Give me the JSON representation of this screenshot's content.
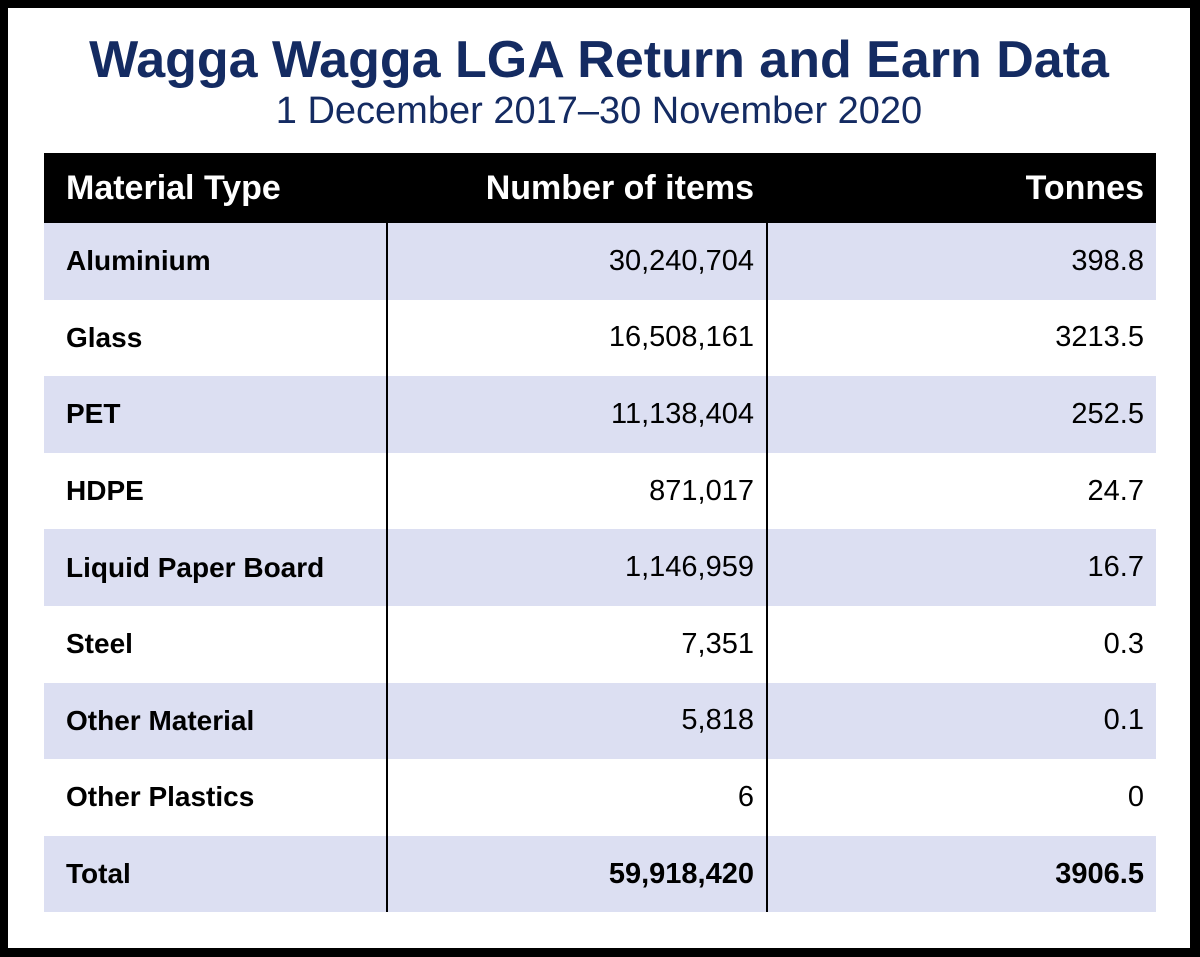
{
  "title": "Wagga Wagga LGA Return and Earn Data",
  "subtitle": "1 December 2017–30 November 2020",
  "colors": {
    "title": "#142b62",
    "header_bg": "#000000",
    "header_text": "#ffffff",
    "shaded_row": "#dcdff2",
    "plain_row": "#ffffff",
    "border": "#000000"
  },
  "table": {
    "headers": [
      "Material Type",
      "Number of items",
      "Tonnes"
    ],
    "rows": [
      {
        "material": "Aluminium",
        "items": "30,240,704",
        "tonnes": "398.8"
      },
      {
        "material": "Glass",
        "items": "16,508,161",
        "tonnes": "3213.5"
      },
      {
        "material": "PET",
        "items": "11,138,404",
        "tonnes": "252.5"
      },
      {
        "material": "HDPE",
        "items": "871,017",
        "tonnes": "24.7"
      },
      {
        "material": "Liquid Paper Board",
        "items": "1,146,959",
        "tonnes": "16.7"
      },
      {
        "material": "Steel",
        "items": "7,351",
        "tonnes": "0.3"
      },
      {
        "material": "Other Material",
        "items": "5,818",
        "tonnes": "0.1"
      },
      {
        "material": "Other Plastics",
        "items": "6",
        "tonnes": "0"
      }
    ],
    "total": {
      "material": "Total",
      "items": "59,918,420",
      "tonnes": "3906.5"
    }
  }
}
